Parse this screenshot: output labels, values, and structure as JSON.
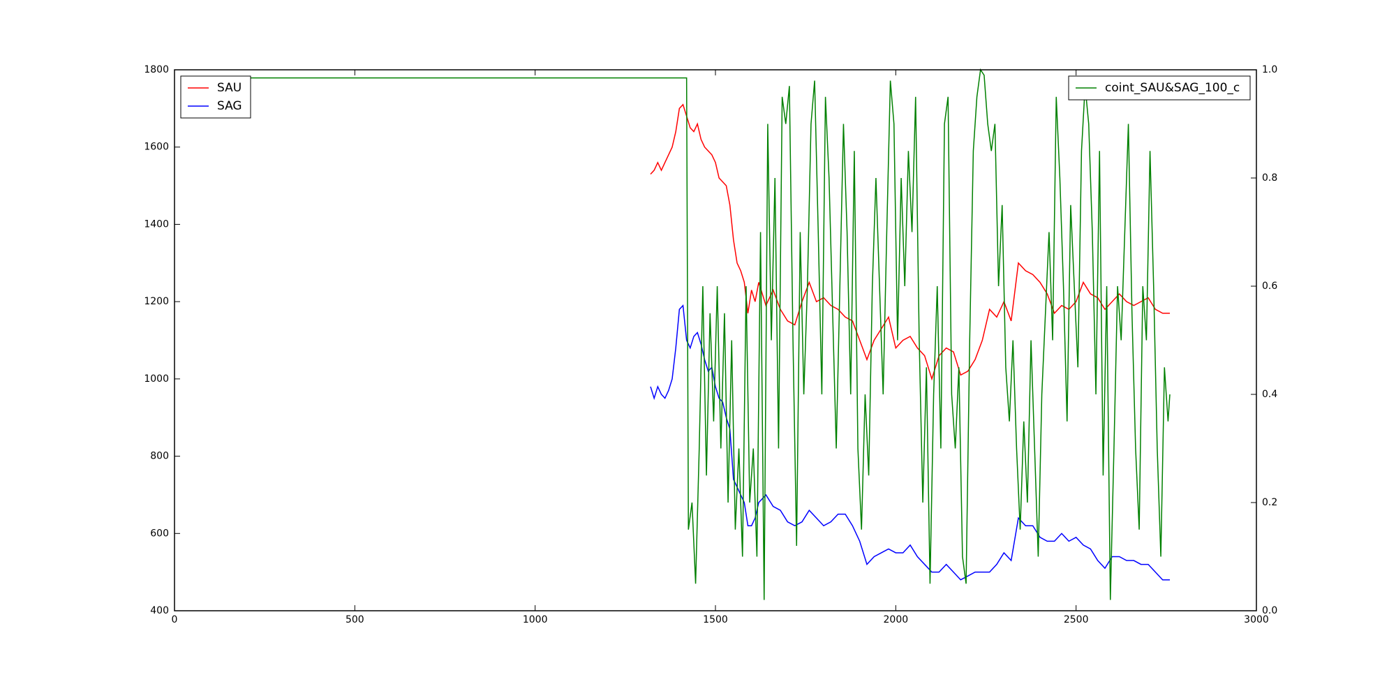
{
  "chart_data": {
    "type": "line",
    "xlim": [
      0,
      3000
    ],
    "xticks": [
      0,
      500,
      1000,
      1500,
      2000,
      2500,
      3000
    ],
    "ylim": [
      400,
      1800
    ],
    "yticks": [
      400,
      600,
      800,
      1000,
      1200,
      1400,
      1600,
      1800
    ],
    "y2lim": [
      0,
      1
    ],
    "y2ticks": [
      {
        "value": 0,
        "label": "0.0"
      },
      0.2,
      0.4,
      0.6,
      0.8,
      {
        "value": 1,
        "label": "1.0"
      }
    ],
    "grid": false,
    "legend": "upper left",
    "legend_y2": "upper right",
    "series": [
      {
        "name": "SAU",
        "color": "#ff0000",
        "x": [
          1320,
          1330,
          1340,
          1350,
          1360,
          1370,
          1380,
          1390,
          1400,
          1410,
          1420,
          1430,
          1440,
          1450,
          1460,
          1470,
          1480,
          1490,
          1500,
          1510,
          1520,
          1530,
          1540,
          1550,
          1560,
          1570,
          1580,
          1590,
          1600,
          1610,
          1620,
          1640,
          1660,
          1680,
          1700,
          1720,
          1740,
          1760,
          1780,
          1800,
          1820,
          1840,
          1860,
          1880,
          1900,
          1920,
          1940,
          1960,
          1980,
          2000,
          2020,
          2040,
          2060,
          2080,
          2100,
          2120,
          2140,
          2160,
          2180,
          2200,
          2220,
          2240,
          2260,
          2280,
          2300,
          2320,
          2340,
          2360,
          2380,
          2400,
          2420,
          2440,
          2460,
          2480,
          2500,
          2520,
          2540,
          2560,
          2580,
          2600,
          2620,
          2640,
          2660,
          2680,
          2700,
          2720,
          2740,
          2760
        ],
        "values": [
          1530,
          1540,
          1560,
          1540,
          1560,
          1580,
          1600,
          1640,
          1700,
          1710,
          1680,
          1650,
          1640,
          1660,
          1620,
          1600,
          1590,
          1580,
          1560,
          1520,
          1510,
          1500,
          1450,
          1360,
          1300,
          1280,
          1250,
          1170,
          1230,
          1200,
          1250,
          1190,
          1230,
          1180,
          1150,
          1140,
          1200,
          1250,
          1200,
          1210,
          1190,
          1180,
          1160,
          1150,
          1100,
          1050,
          1100,
          1130,
          1160,
          1080,
          1100,
          1110,
          1080,
          1060,
          1000,
          1060,
          1080,
          1070,
          1010,
          1020,
          1050,
          1100,
          1180,
          1160,
          1200,
          1150,
          1300,
          1280,
          1270,
          1250,
          1220,
          1170,
          1190,
          1180,
          1200,
          1250,
          1220,
          1210,
          1180,
          1200,
          1220,
          1200,
          1190,
          1200,
          1210,
          1180,
          1170,
          1170
        ]
      },
      {
        "name": "SAG",
        "color": "#0000ff",
        "x": [
          1320,
          1330,
          1340,
          1350,
          1360,
          1370,
          1380,
          1390,
          1400,
          1410,
          1420,
          1430,
          1440,
          1450,
          1460,
          1470,
          1480,
          1490,
          1500,
          1510,
          1520,
          1530,
          1540,
          1550,
          1560,
          1570,
          1580,
          1590,
          1600,
          1610,
          1620,
          1640,
          1660,
          1680,
          1700,
          1720,
          1740,
          1760,
          1780,
          1800,
          1820,
          1840,
          1860,
          1880,
          1900,
          1920,
          1940,
          1960,
          1980,
          2000,
          2020,
          2040,
          2060,
          2080,
          2100,
          2120,
          2140,
          2160,
          2180,
          2200,
          2220,
          2240,
          2260,
          2280,
          2300,
          2320,
          2340,
          2360,
          2380,
          2400,
          2420,
          2440,
          2460,
          2480,
          2500,
          2520,
          2540,
          2560,
          2580,
          2600,
          2620,
          2640,
          2660,
          2680,
          2700,
          2720,
          2740,
          2760
        ],
        "values": [
          980,
          950,
          980,
          960,
          950,
          970,
          1000,
          1080,
          1180,
          1190,
          1100,
          1080,
          1110,
          1120,
          1090,
          1050,
          1020,
          1030,
          980,
          950,
          940,
          900,
          870,
          740,
          720,
          700,
          680,
          620,
          620,
          640,
          680,
          700,
          670,
          660,
          630,
          620,
          630,
          660,
          640,
          620,
          630,
          650,
          650,
          620,
          580,
          520,
          540,
          550,
          560,
          550,
          550,
          570,
          540,
          520,
          500,
          500,
          520,
          500,
          480,
          490,
          500,
          500,
          500,
          520,
          550,
          530,
          640,
          620,
          620,
          590,
          580,
          580,
          600,
          580,
          590,
          570,
          560,
          530,
          510,
          540,
          540,
          530,
          530,
          520,
          520,
          500,
          480,
          480
        ]
      },
      {
        "name": "coint_SAU&SAG_100_c",
        "color": "#008000",
        "axis": "y2",
        "x": [
          100,
          1420,
          1425,
          1435,
          1445,
          1455,
          1465,
          1475,
          1485,
          1495,
          1505,
          1515,
          1525,
          1535,
          1545,
          1555,
          1565,
          1575,
          1585,
          1595,
          1605,
          1615,
          1625,
          1635,
          1645,
          1655,
          1665,
          1675,
          1685,
          1695,
          1705,
          1715,
          1725,
          1735,
          1745,
          1755,
          1765,
          1775,
          1785,
          1795,
          1805,
          1815,
          1825,
          1835,
          1845,
          1855,
          1865,
          1875,
          1885,
          1895,
          1905,
          1915,
          1925,
          1935,
          1945,
          1955,
          1965,
          1975,
          1985,
          1995,
          2005,
          2015,
          2025,
          2035,
          2045,
          2055,
          2065,
          2075,
          2085,
          2095,
          2105,
          2115,
          2125,
          2135,
          2145,
          2155,
          2165,
          2175,
          2185,
          2195,
          2205,
          2215,
          2225,
          2235,
          2245,
          2255,
          2265,
          2275,
          2285,
          2295,
          2305,
          2315,
          2325,
          2335,
          2345,
          2355,
          2365,
          2375,
          2385,
          2395,
          2405,
          2415,
          2425,
          2435,
          2445,
          2455,
          2465,
          2475,
          2485,
          2495,
          2505,
          2515,
          2525,
          2535,
          2545,
          2555,
          2565,
          2575,
          2585,
          2595,
          2605,
          2615,
          2625,
          2635,
          2645,
          2655,
          2665,
          2675,
          2685,
          2695,
          2705,
          2715,
          2725,
          2735,
          2745,
          2755,
          2760
        ],
        "values": [
          0.985,
          0.985,
          0.15,
          0.2,
          0.05,
          0.3,
          0.6,
          0.25,
          0.55,
          0.35,
          0.6,
          0.3,
          0.55,
          0.2,
          0.5,
          0.15,
          0.3,
          0.1,
          0.6,
          0.2,
          0.3,
          0.1,
          0.7,
          0.02,
          0.9,
          0.5,
          0.8,
          0.3,
          0.95,
          0.9,
          0.97,
          0.5,
          0.12,
          0.7,
          0.4,
          0.6,
          0.9,
          0.98,
          0.7,
          0.4,
          0.95,
          0.8,
          0.55,
          0.3,
          0.6,
          0.9,
          0.7,
          0.4,
          0.85,
          0.3,
          0.15,
          0.4,
          0.25,
          0.6,
          0.8,
          0.6,
          0.4,
          0.7,
          0.98,
          0.9,
          0.5,
          0.8,
          0.6,
          0.85,
          0.7,
          0.95,
          0.5,
          0.2,
          0.45,
          0.05,
          0.4,
          0.6,
          0.3,
          0.9,
          0.95,
          0.4,
          0.3,
          0.45,
          0.1,
          0.05,
          0.5,
          0.85,
          0.95,
          1.0,
          0.99,
          0.9,
          0.85,
          0.9,
          0.6,
          0.75,
          0.45,
          0.35,
          0.5,
          0.3,
          0.15,
          0.35,
          0.2,
          0.5,
          0.3,
          0.1,
          0.4,
          0.55,
          0.7,
          0.5,
          0.95,
          0.8,
          0.6,
          0.35,
          0.75,
          0.6,
          0.45,
          0.85,
          0.97,
          0.9,
          0.7,
          0.4,
          0.85,
          0.25,
          0.6,
          0.02,
          0.3,
          0.6,
          0.5,
          0.7,
          0.9,
          0.55,
          0.3,
          0.15,
          0.6,
          0.5,
          0.85,
          0.6,
          0.3,
          0.1,
          0.45,
          0.35,
          0.4
        ]
      }
    ]
  }
}
